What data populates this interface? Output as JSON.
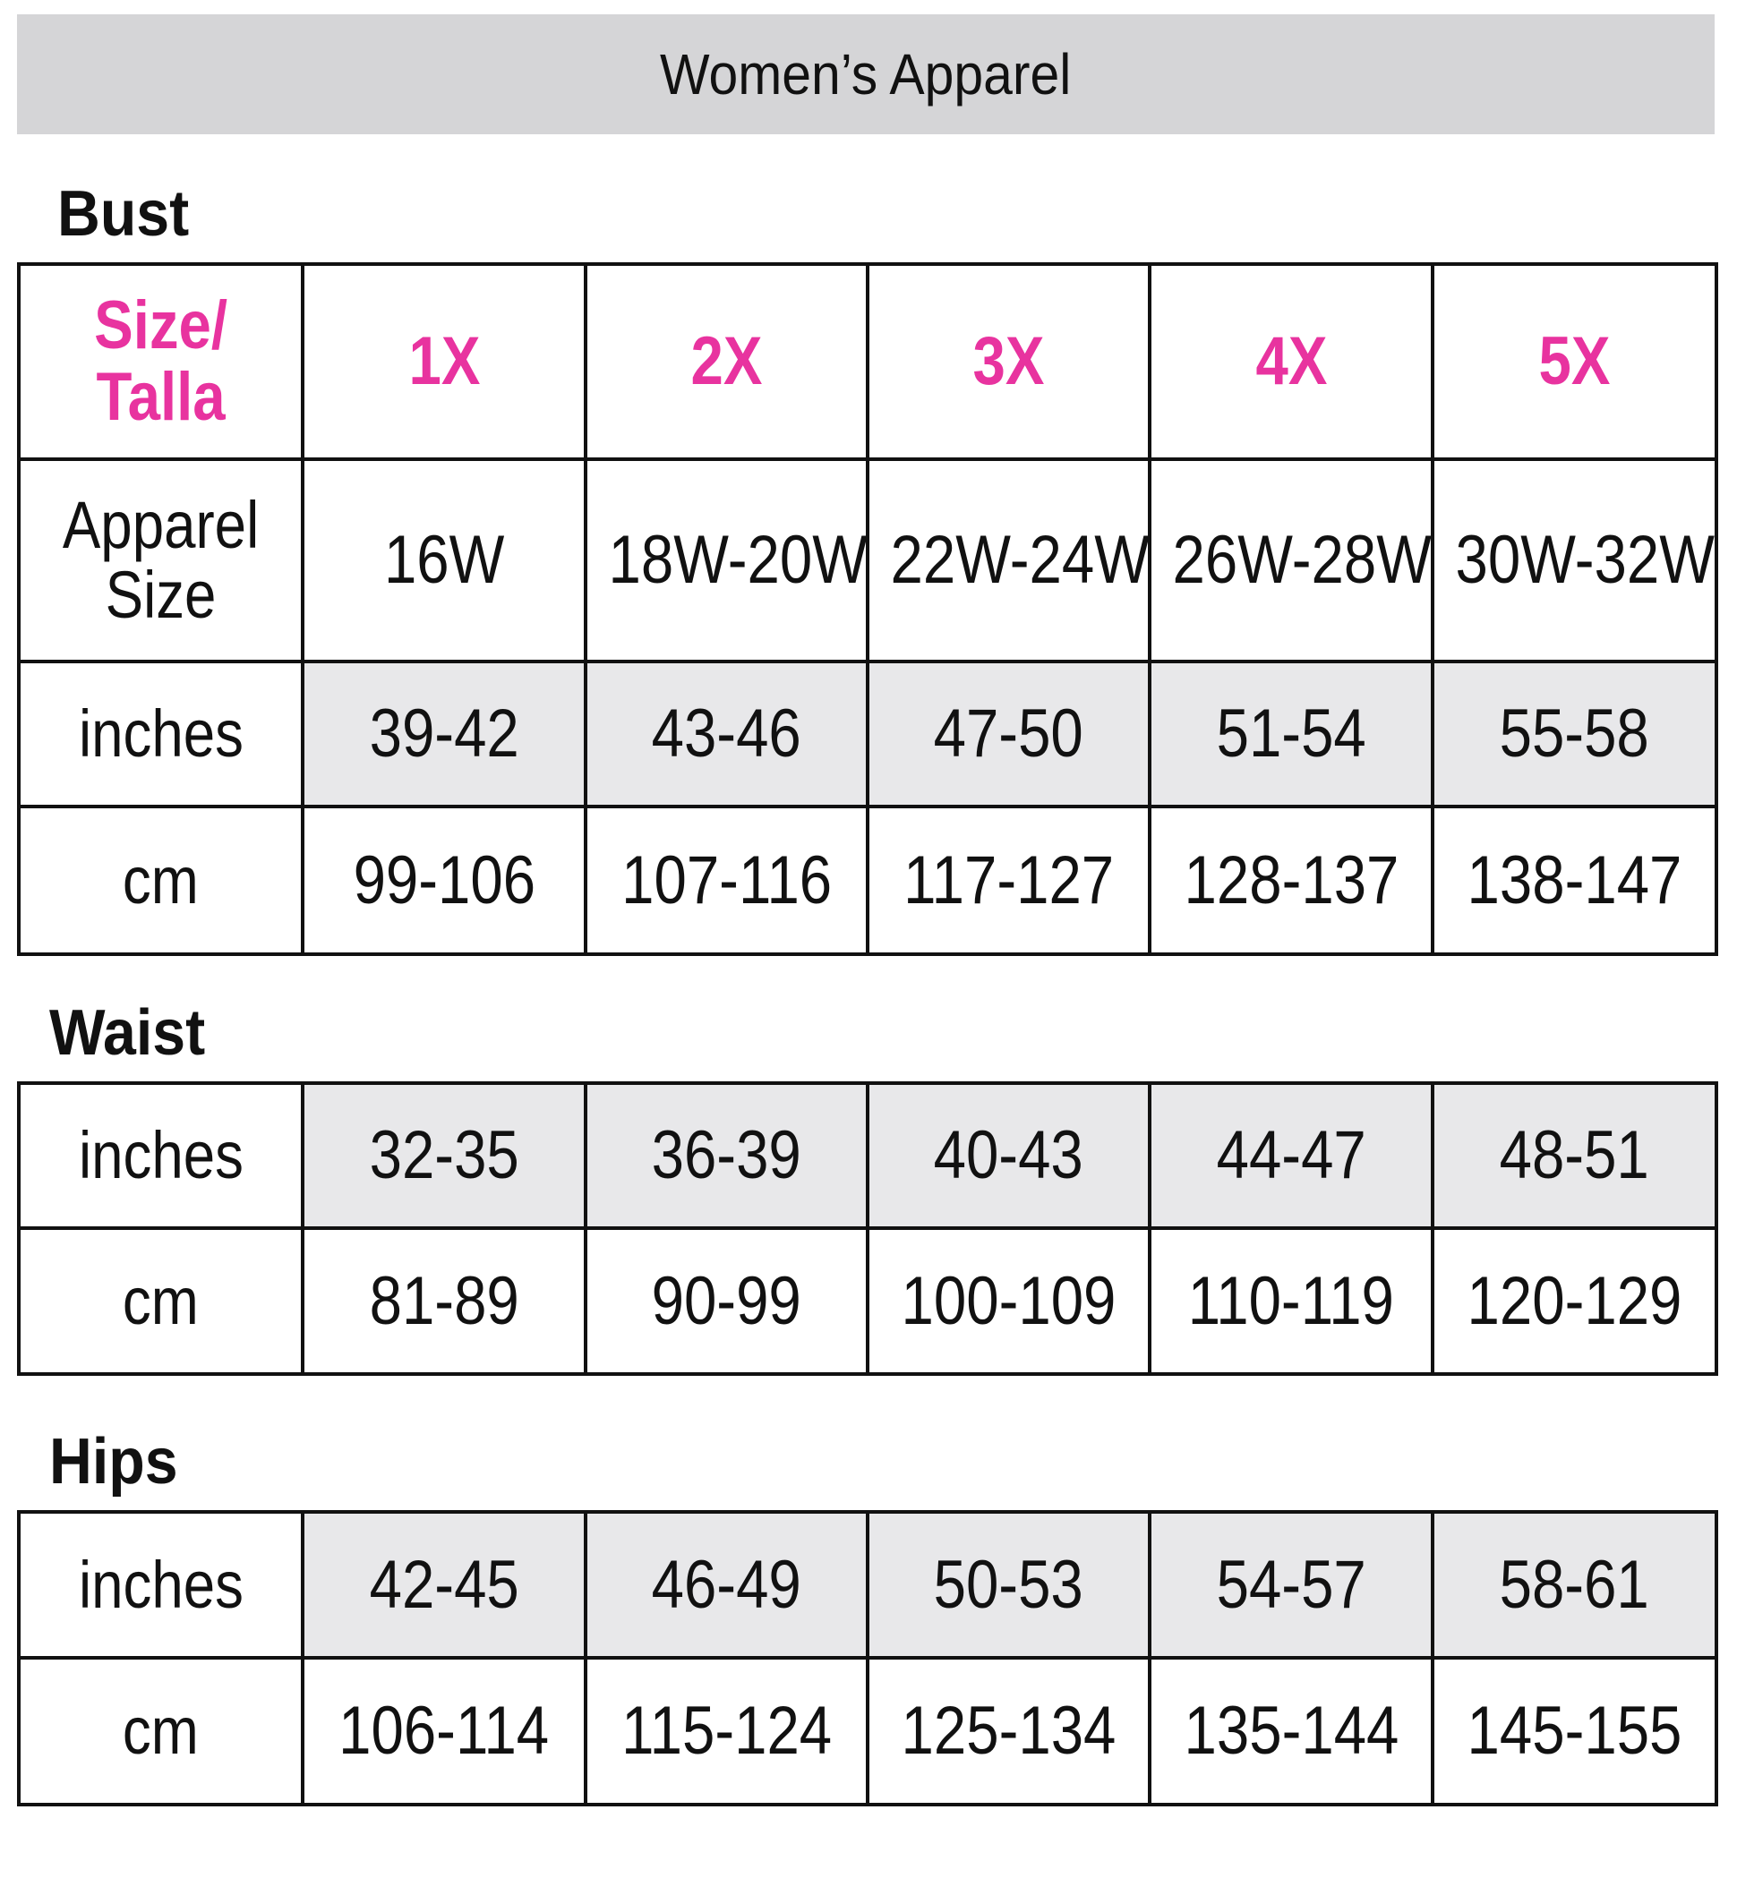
{
  "title": "Women’s Apparel",
  "colors": {
    "accent": "#e8339f",
    "header_bg": "#d5d5d7",
    "shaded_cell": "#e8e8ea"
  },
  "bust": {
    "label": "Bust",
    "size_header": {
      "label": "Size/\nTalla",
      "sizes": [
        "1X",
        "2X",
        "3X",
        "4X",
        "5X"
      ]
    },
    "rows": [
      {
        "label": "Apparel\nSize",
        "values": [
          "16W",
          "18W-20W",
          "22W-24W",
          "26W-28W",
          "30W-32W"
        ],
        "shaded": false
      },
      {
        "label": "inches",
        "values": [
          "39-42",
          "43-46",
          "47-50",
          "51-54",
          "55-58"
        ],
        "shaded": true
      },
      {
        "label": "cm",
        "values": [
          "99-106",
          "107-116",
          "117-127",
          "128-137",
          "138-147"
        ],
        "shaded": false
      }
    ]
  },
  "waist": {
    "label": "Waist",
    "rows": [
      {
        "label": "inches",
        "values": [
          "32-35",
          "36-39",
          "40-43",
          "44-47",
          "48-51"
        ],
        "shaded": true
      },
      {
        "label": "cm",
        "values": [
          "81-89",
          "90-99",
          "100-109",
          "110-119",
          "120-129"
        ],
        "shaded": false
      }
    ]
  },
  "hips": {
    "label": "Hips",
    "rows": [
      {
        "label": "inches",
        "values": [
          "42-45",
          "46-49",
          "50-53",
          "54-57",
          "58-61"
        ],
        "shaded": true
      },
      {
        "label": "cm",
        "values": [
          "106-114",
          "115-124",
          "125-134",
          "135-144",
          "145-155"
        ],
        "shaded": false
      }
    ]
  }
}
